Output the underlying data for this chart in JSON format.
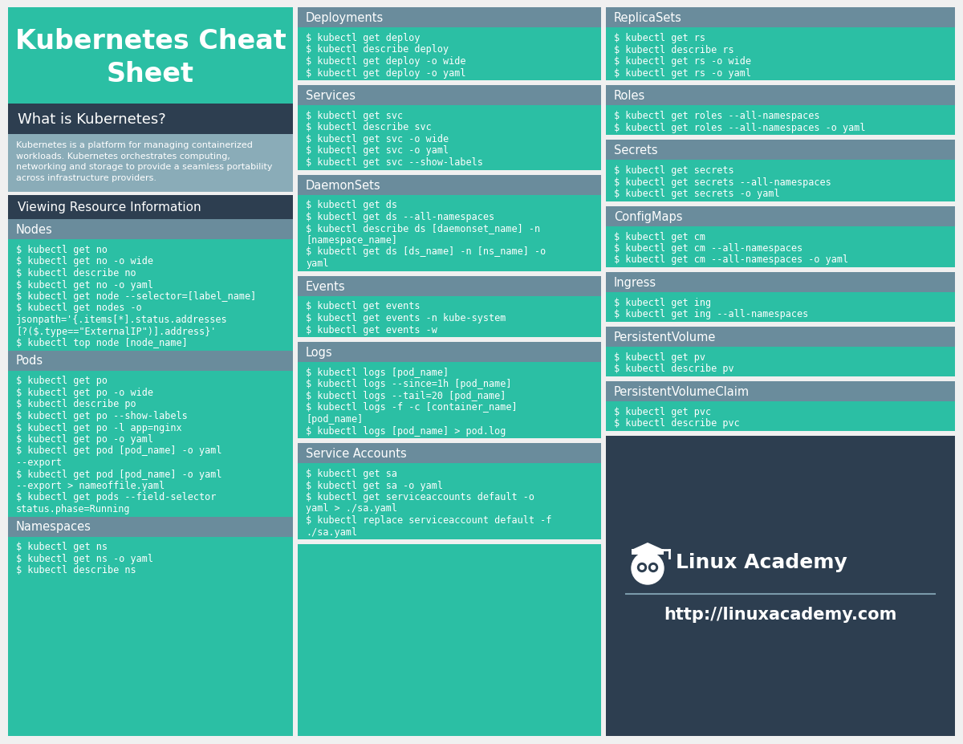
{
  "colors": {
    "teal": "#2bbfa4",
    "dark_navy": "#2d3e50",
    "slate_header": "#6a8c9c",
    "light_desc_bg": "#8aacb8",
    "white": "#ffffff",
    "bg": "#f0f0f0"
  },
  "col1": {
    "header_title": "Kubernetes Cheat\nSheet",
    "what_is_title": "What is Kubernetes?",
    "what_is_text": "Kubernetes is a platform for managing containerized\nworkloads. Kubernetes orchestrates computing,\nnetworking and storage to provide a seamless portability\nacross infrastructure providers.",
    "viewing_title": "Viewing Resource Information",
    "sections": [
      {
        "title": "Nodes",
        "commands": [
          "$ kubectl get no",
          "$ kubectl get no -o wide",
          "$ kubectl describe no",
          "$ kubectl get no -o yaml",
          "$ kubectl get node --selector=[label_name]",
          "$ kubectl get nodes -o",
          "jsonpath='{.items[*].status.addresses",
          "[?($.type==\"ExternalIP\")].address}'",
          "$ kubectl top node [node_name]"
        ]
      },
      {
        "title": "Pods",
        "commands": [
          "$ kubectl get po",
          "$ kubectl get po -o wide",
          "$ kubectl describe po",
          "$ kubectl get po --show-labels",
          "$ kubectl get po -l app=nginx",
          "$ kubectl get po -o yaml",
          "$ kubectl get pod [pod_name] -o yaml",
          "--export",
          "$ kubectl get pod [pod_name] -o yaml",
          "--export > nameoffile.yaml",
          "$ kubectl get pods --field-selector",
          "status.phase=Running"
        ]
      },
      {
        "title": "Namespaces",
        "commands": [
          "$ kubectl get ns",
          "$ kubectl get ns -o yaml",
          "$ kubectl describe ns"
        ]
      }
    ]
  },
  "col2": {
    "sections": [
      {
        "title": "Deployments",
        "commands": [
          "$ kubectl get deploy",
          "$ kubectl describe deploy",
          "$ kubectl get deploy -o wide",
          "$ kubectl get deploy -o yaml"
        ]
      },
      {
        "title": "Services",
        "commands": [
          "$ kubectl get svc",
          "$ kubectl describe svc",
          "$ kubectl get svc -o wide",
          "$ kubectl get svc -o yaml",
          "$ kubectl get svc --show-labels"
        ]
      },
      {
        "title": "DaemonSets",
        "commands": [
          "$ kubectl get ds",
          "$ kubectl get ds --all-namespaces",
          "$ kubectl describe ds [daemonset_name] -n",
          "[namespace_name]",
          "$ kubectl get ds [ds_name] -n [ns_name] -o",
          "yaml"
        ]
      },
      {
        "title": "Events",
        "commands": [
          "$ kubectl get events",
          "$ kubectl get events -n kube-system",
          "$ kubectl get events -w"
        ]
      },
      {
        "title": "Logs",
        "commands": [
          "$ kubectl logs [pod_name]",
          "$ kubectl logs --since=1h [pod_name]",
          "$ kubectl logs --tail=20 [pod_name]",
          "$ kubectl logs -f -c [container_name]",
          "[pod_name]",
          "$ kubectl logs [pod_name] > pod.log"
        ]
      },
      {
        "title": "Service Accounts",
        "commands": [
          "$ kubectl get sa",
          "$ kubectl get sa -o yaml",
          "$ kubectl get serviceaccounts default -o",
          "yaml > ./sa.yaml",
          "$ kubectl replace serviceaccount default -f",
          "./sa.yaml"
        ]
      }
    ]
  },
  "col3": {
    "sections": [
      {
        "title": "ReplicaSets",
        "commands": [
          "$ kubectl get rs",
          "$ kubectl describe rs",
          "$ kubectl get rs -o wide",
          "$ kubectl get rs -o yaml"
        ]
      },
      {
        "title": "Roles",
        "commands": [
          "$ kubectl get roles --all-namespaces",
          "$ kubectl get roles --all-namespaces -o yaml"
        ]
      },
      {
        "title": "Secrets",
        "commands": [
          "$ kubectl get secrets",
          "$ kubectl get secrets --all-namespaces",
          "$ kubectl get secrets -o yaml"
        ]
      },
      {
        "title": "ConfigMaps",
        "commands": [
          "$ kubectl get cm",
          "$ kubectl get cm --all-namespaces",
          "$ kubectl get cm --all-namespaces -o yaml"
        ]
      },
      {
        "title": "Ingress",
        "commands": [
          "$ kubectl get ing",
          "$ kubectl get ing --all-namespaces"
        ]
      },
      {
        "title": "PersistentVolume",
        "commands": [
          "$ kubectl get pv",
          "$ kubectl describe pv"
        ]
      },
      {
        "title": "PersistentVolumeClaim",
        "commands": [
          "$ kubectl get pvc",
          "$ kubectl describe pvc"
        ]
      }
    ],
    "logo_text": "Linux Academy",
    "url_text": "http://linuxacademy.com"
  }
}
